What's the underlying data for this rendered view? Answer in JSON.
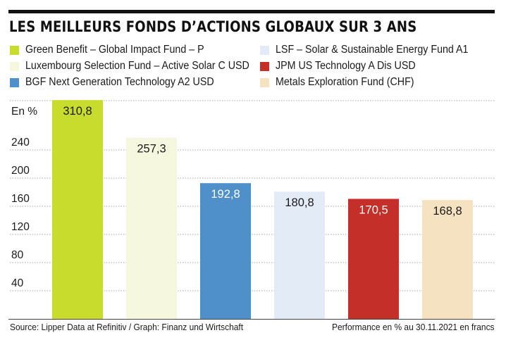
{
  "title": "LES MEILLEURS FONDS D’ACTIONS GLOBAUX SUR 3 ANS",
  "source": "Source: Lipper Data at Refinitiv / Graph: Finanz und Wirtschaft",
  "note": "Performance en % au 30.11.2021 en francs",
  "chart_data": {
    "type": "bar",
    "title": "LES MEILLEURS FONDS D’ACTIONS GLOBAUX SUR 3 ANS",
    "ylabel": "En %",
    "xlabel": "",
    "ylim": [
      0,
      320
    ],
    "yticks": [
      40,
      80,
      120,
      160,
      200,
      240
    ],
    "grid": true,
    "legend": "top",
    "series": [
      {
        "name": "Green Benefit – Global Impact Fund – P",
        "value": 310.8,
        "label": "310,8",
        "color": "#c8dc2e",
        "label_color": "#1a1a1a"
      },
      {
        "name": "Luxembourg Selection Fund – Active Solar C USD",
        "value": 257.3,
        "label": "257,3",
        "color": "#f5f7df",
        "label_color": "#1a1a1a"
      },
      {
        "name": "BGF Next Generation Technology A2 USD",
        "value": 192.8,
        "label": "192,8",
        "color": "#4f8fca",
        "label_color": "#ffffff"
      },
      {
        "name": "LSF – Solar & Sustainable Energy Fund A1",
        "value": 180.8,
        "label": "180,8",
        "color": "#e3ebf6",
        "label_color": "#1a1a1a"
      },
      {
        "name": "JPM US Technology A Dis USD",
        "value": 170.5,
        "label": "170,5",
        "color": "#c42f2a",
        "label_color": "#ffffff"
      },
      {
        "name": "Metals Exploration Fund (CHF)",
        "value": 168.8,
        "label": "168,8",
        "color": "#f5e2c0",
        "label_color": "#1a1a1a"
      }
    ],
    "legend_order": [
      0,
      3,
      1,
      4,
      2,
      5
    ]
  }
}
